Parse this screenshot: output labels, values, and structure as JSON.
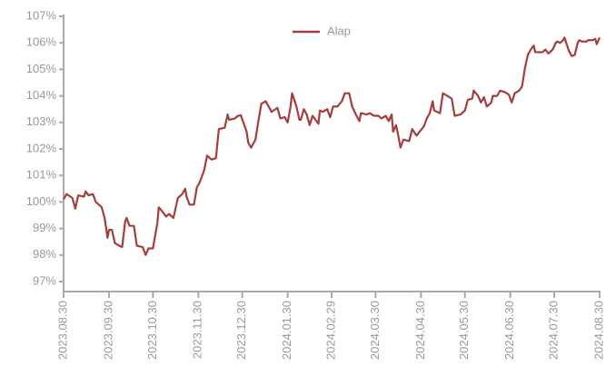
{
  "chart_data": {
    "type": "line",
    "x": [
      "2023.08.30",
      "2023.09.01",
      "2023.09.05",
      "2023.09.07",
      "2023.09.09",
      "2023.09.13",
      "2023.09.14",
      "2023.09.16",
      "2023.09.19",
      "2023.09.21",
      "2023.09.25",
      "2023.09.27",
      "2023.09.29",
      "2023.09.30",
      "2023.10.02",
      "2023.10.04",
      "2023.10.07",
      "2023.10.09",
      "2023.10.11",
      "2023.10.12",
      "2023.10.14",
      "2023.10.17",
      "2023.10.19",
      "2023.10.23",
      "2023.10.25",
      "2023.10.27",
      "2023.10.30",
      "2023.11.02",
      "2023.11.03",
      "2023.11.06",
      "2023.11.08",
      "2023.11.10",
      "2023.11.13",
      "2023.11.16",
      "2023.11.19",
      "2023.11.21",
      "2023.11.22",
      "2023.11.24",
      "2023.11.27",
      "2023.11.29",
      "2023.12.01",
      "2023.12.04",
      "2023.12.06",
      "2023.12.09",
      "2023.12.12",
      "2023.12.14",
      "2023.12.18",
      "2023.12.20",
      "2023.12.21",
      "2023.12.25",
      "2023.12.27",
      "2023.12.29",
      "2024.01.02",
      "2024.01.03",
      "2024.01.05",
      "2024.01.08",
      "2024.01.10",
      "2024.01.12",
      "2024.01.15",
      "2024.01.19",
      "2024.01.23",
      "2024.01.25",
      "2024.01.28",
      "2024.01.30",
      "2024.02.01",
      "2024.02.02",
      "2024.02.05",
      "2024.02.07",
      "2024.02.08",
      "2024.02.10",
      "2024.02.12",
      "2024.02.14",
      "2024.02.16",
      "2024.02.20",
      "2024.02.21",
      "2024.02.23",
      "2024.02.26",
      "2024.02.28",
      "2024.03.01",
      "2024.03.04",
      "2024.03.07",
      "2024.03.09",
      "2024.03.12",
      "2024.03.14",
      "2024.03.17",
      "2024.03.19",
      "2024.03.20",
      "2024.03.24",
      "2024.03.26",
      "2024.03.29",
      "2024.04.01",
      "2024.04.03",
      "2024.04.06",
      "2024.04.08",
      "2024.04.10",
      "2024.04.11",
      "2024.04.13",
      "2024.04.14",
      "2024.04.16",
      "2024.04.18",
      "2024.04.22",
      "2024.04.24",
      "2024.04.27",
      "2024.04.29",
      "2024.05.02",
      "2024.05.04",
      "2024.05.06",
      "2024.05.08",
      "2024.05.09",
      "2024.05.13",
      "2024.05.15",
      "2024.05.18",
      "2024.05.21",
      "2024.05.23",
      "2024.05.27",
      "2024.05.30",
      "2024.06.01",
      "2024.06.04",
      "2024.06.05",
      "2024.06.08",
      "2024.06.10",
      "2024.06.12",
      "2024.06.14",
      "2024.06.17",
      "2024.06.18",
      "2024.06.21",
      "2024.06.23",
      "2024.06.26",
      "2024.06.29",
      "2024.07.01",
      "2024.07.03",
      "2024.07.06",
      "2024.07.08",
      "2024.07.10",
      "2024.07.12",
      "2024.07.14",
      "2024.07.16",
      "2024.07.17",
      "2024.07.20",
      "2024.07.22",
      "2024.07.24",
      "2024.07.26",
      "2024.07.29",
      "2024.07.31",
      "2024.08.01",
      "2024.08.03",
      "2024.08.05",
      "2024.08.06",
      "2024.08.09",
      "2024.08.11",
      "2024.08.13",
      "2024.08.15",
      "2024.08.16",
      "2024.08.18",
      "2024.08.21",
      "2024.08.22",
      "2024.08.25",
      "2024.08.27",
      "2024.08.28",
      "2024.08.30"
    ],
    "series": [
      {
        "name": "Alap",
        "color": "#a63d3d",
        "values": [
          100.1,
          100.3,
          100.15,
          99.75,
          100.25,
          100.2,
          100.4,
          100.25,
          100.3,
          100.0,
          99.8,
          99.4,
          98.65,
          98.95,
          98.95,
          98.45,
          98.35,
          98.3,
          99.25,
          99.4,
          99.1,
          99.1,
          98.35,
          98.3,
          98.0,
          98.25,
          98.25,
          99.2,
          99.8,
          99.6,
          99.45,
          99.55,
          99.4,
          100.15,
          100.3,
          100.5,
          100.2,
          99.9,
          99.9,
          100.55,
          100.75,
          101.2,
          101.75,
          101.6,
          101.65,
          102.75,
          102.8,
          103.3,
          103.1,
          103.15,
          103.25,
          103.27,
          102.65,
          102.25,
          102.05,
          102.35,
          103.05,
          103.7,
          103.8,
          103.4,
          103.55,
          103.15,
          103.2,
          103.0,
          103.6,
          104.1,
          103.6,
          103.1,
          103.1,
          103.5,
          103.3,
          102.9,
          103.25,
          102.95,
          103.45,
          103.4,
          103.5,
          103.2,
          103.6,
          103.6,
          103.8,
          104.1,
          104.1,
          103.6,
          103.25,
          103.05,
          103.35,
          103.3,
          103.35,
          103.25,
          103.25,
          103.15,
          103.25,
          103.05,
          103.3,
          102.65,
          102.9,
          102.65,
          102.05,
          102.35,
          102.3,
          102.75,
          102.5,
          102.65,
          102.85,
          103.15,
          103.35,
          103.8,
          103.45,
          103.35,
          104.1,
          104.0,
          103.9,
          103.25,
          103.3,
          103.45,
          103.85,
          103.9,
          104.2,
          104.0,
          103.75,
          103.95,
          103.6,
          103.75,
          104.0,
          104.0,
          104.2,
          104.15,
          104.05,
          103.75,
          104.1,
          104.2,
          104.35,
          105.05,
          105.55,
          105.75,
          105.9,
          105.65,
          105.65,
          105.65,
          105.75,
          105.6,
          105.75,
          106.0,
          106.05,
          106.0,
          106.1,
          106.2,
          105.7,
          105.5,
          105.55,
          106.0,
          106.1,
          106.05,
          106.05,
          106.1,
          106.1,
          106.15,
          105.95,
          106.2
        ]
      }
    ],
    "xlim": [
      "2023.08.30",
      "2024.08.30"
    ],
    "xticks": [
      "2023.08.30",
      "2023.09.30",
      "2023.10.30",
      "2023.11.30",
      "2023.12.30",
      "2024.01.30",
      "2024.02.29",
      "2024.03.30",
      "2024.04.30",
      "2024.05.30",
      "2024.06.30",
      "2024.07.30",
      "2024.08.30"
    ],
    "ylim": [
      97,
      107
    ],
    "yticks": [
      {
        "value": 97,
        "label": "97%"
      },
      {
        "value": 98,
        "label": "98%"
      },
      {
        "value": 99,
        "label": "99%"
      },
      {
        "value": 100,
        "label": "100%"
      },
      {
        "value": 101,
        "label": "101%"
      },
      {
        "value": 102,
        "label": "102%"
      },
      {
        "value": 103,
        "label": "103%"
      },
      {
        "value": 104,
        "label": "104%"
      },
      {
        "value": 105,
        "label": "105%"
      },
      {
        "value": 106,
        "label": "106%"
      },
      {
        "value": 107,
        "label": "107%"
      }
    ],
    "legend": "top"
  }
}
